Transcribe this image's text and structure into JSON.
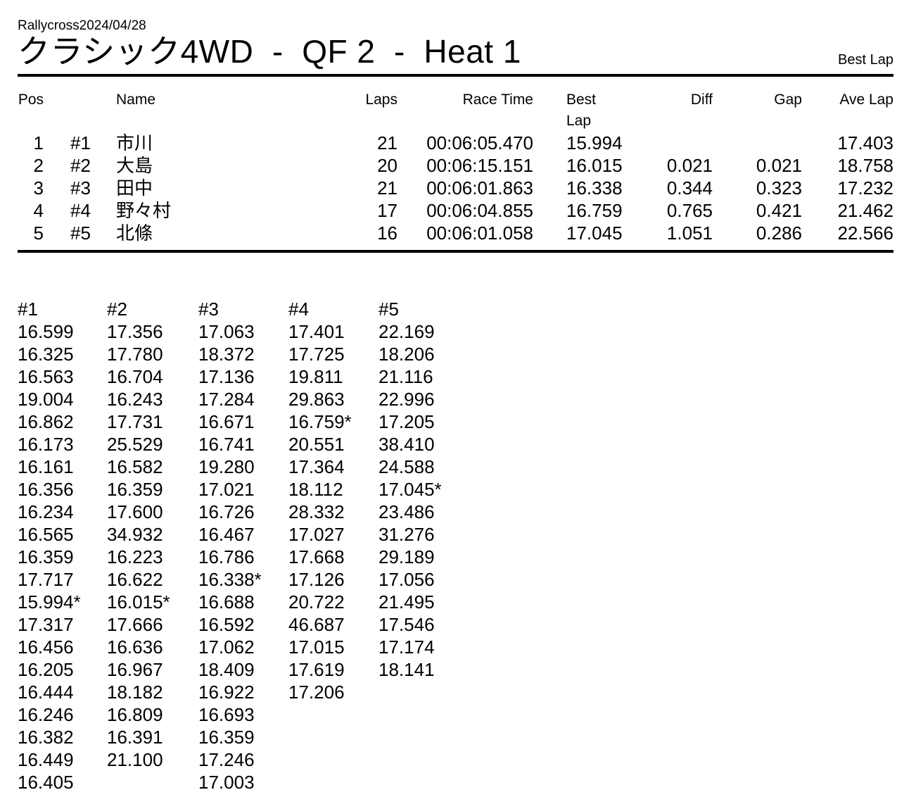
{
  "page": {
    "event_name": "Rallycross2024/04/28",
    "title": "クラシック4WD  -  QF 2  -  Heat 1",
    "best_lap_note": "Best Lap"
  },
  "results_table": {
    "headers": {
      "pos": "Pos",
      "car": "",
      "name": "Name",
      "laps": "Laps",
      "race_time": "Race Time",
      "best_lap": "Best Lap",
      "diff": "Diff",
      "gap": "Gap",
      "ave_lap": "Ave Lap"
    },
    "rows": [
      {
        "pos": "1",
        "car": "#1",
        "name": "市川",
        "laps": "21",
        "race_time": "00:06:05.470",
        "best_lap": "15.994",
        "diff": "",
        "gap": "",
        "ave_lap": "17.403"
      },
      {
        "pos": "2",
        "car": "#2",
        "name": "大島",
        "laps": "20",
        "race_time": "00:06:15.151",
        "best_lap": "16.015",
        "diff": "0.021",
        "gap": "0.021",
        "ave_lap": "18.758"
      },
      {
        "pos": "3",
        "car": "#3",
        "name": "田中",
        "laps": "21",
        "race_time": "00:06:01.863",
        "best_lap": "16.338",
        "diff": "0.344",
        "gap": "0.323",
        "ave_lap": "17.232"
      },
      {
        "pos": "4",
        "car": "#4",
        "name": "野々村",
        "laps": "17",
        "race_time": "00:06:04.855",
        "best_lap": "16.759",
        "diff": "0.765",
        "gap": "0.421",
        "ave_lap": "21.462"
      },
      {
        "pos": "5",
        "car": "#5",
        "name": "北條",
        "laps": "16",
        "race_time": "00:06:01.058",
        "best_lap": "17.045",
        "diff": "1.051",
        "gap": "0.286",
        "ave_lap": "22.566"
      }
    ]
  },
  "lap_times": {
    "columns": [
      {
        "car": "#1",
        "laps": [
          "16.599",
          "16.325",
          "16.563",
          "19.004",
          "16.862",
          "16.173",
          "16.161",
          "16.356",
          "16.234",
          "16.565",
          "16.359",
          "17.717",
          "15.994*",
          "17.317",
          "16.456",
          "16.205",
          "16.444",
          "16.246",
          "16.382",
          "16.449",
          "16.405"
        ]
      },
      {
        "car": "#2",
        "laps": [
          "17.356",
          "17.780",
          "16.704",
          "16.243",
          "17.731",
          "25.529",
          "16.582",
          "16.359",
          "17.600",
          "34.932",
          "16.223",
          "16.622",
          "16.015*",
          "17.666",
          "16.636",
          "16.967",
          "18.182",
          "16.809",
          "16.391",
          "21.100"
        ]
      },
      {
        "car": "#3",
        "laps": [
          "17.063",
          "18.372",
          "17.136",
          "17.284",
          "16.671",
          "16.741",
          "19.280",
          "17.021",
          "16.726",
          "16.467",
          "16.786",
          "16.338*",
          "16.688",
          "16.592",
          "17.062",
          "18.409",
          "16.922",
          "16.693",
          "16.359",
          "17.246",
          "17.003"
        ]
      },
      {
        "car": "#4",
        "laps": [
          "17.401",
          "17.725",
          "19.811",
          "29.863",
          "16.759*",
          "20.551",
          "17.364",
          "18.112",
          "28.332",
          "17.027",
          "17.668",
          "17.126",
          "20.722",
          "46.687",
          "17.015",
          "17.619",
          "17.206"
        ]
      },
      {
        "car": "#5",
        "laps": [
          "22.169",
          "18.206",
          "21.116",
          "22.996",
          "17.205",
          "38.410",
          "24.588",
          "17.045*",
          "23.486",
          "31.276",
          "29.189",
          "17.056",
          "21.495",
          "17.546",
          "17.174",
          "18.141"
        ]
      }
    ]
  }
}
